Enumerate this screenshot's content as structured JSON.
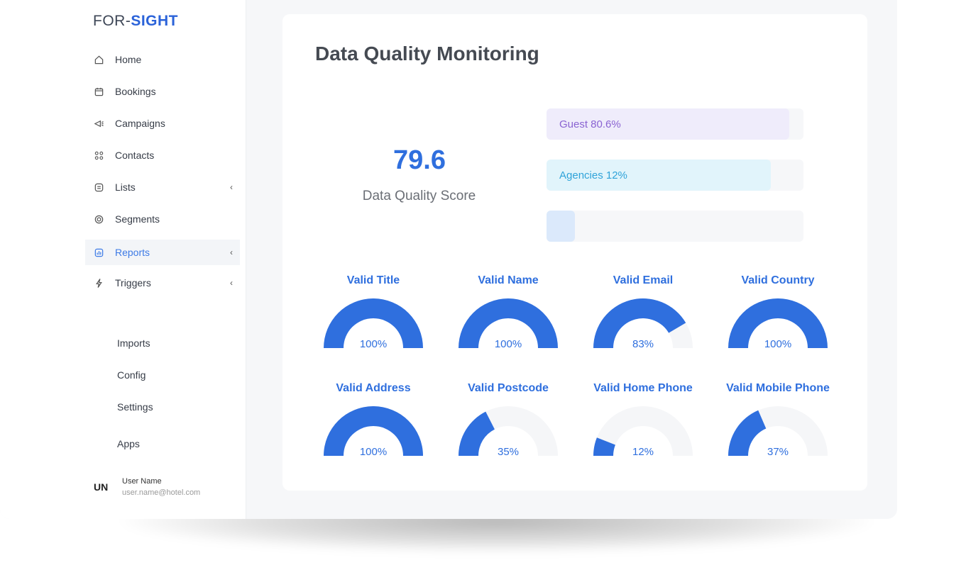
{
  "brand": {
    "part1": "FOR-",
    "part2": "SIGHT"
  },
  "nav": {
    "home": "Home",
    "bookings": "Bookings",
    "campaigns": "Campaigns",
    "contacts": "Contacts",
    "lists": "Lists",
    "segments": "Segments",
    "reports": "Reports",
    "triggers": "Triggers",
    "chevron": "‹"
  },
  "subnav": {
    "imports": "Imports",
    "config": "Config",
    "settings": "Settings",
    "apps": "Apps"
  },
  "user": {
    "initials": "UN",
    "name": "User Name",
    "email": "user.name@hotel.com"
  },
  "page": {
    "title": "Data Quality Monitoring"
  },
  "score": {
    "value": "79.6",
    "label": "Data Quality Score"
  },
  "bars": [
    {
      "label": "Guest 80.6%",
      "fraction": 0.946,
      "fill": "#efecfb",
      "text": "#8a63d2"
    },
    {
      "label": "Agencies 12%",
      "fraction": 0.873,
      "fill": "#e1f4fb",
      "text": "#2fa3d9"
    },
    {
      "label": "",
      "fraction": 0.11,
      "fill": "#dbe9fb",
      "text": "#2f6fde"
    }
  ],
  "gauges": [
    {
      "title": "Valid Title",
      "label": "100%",
      "value": 100
    },
    {
      "title": "Valid Name",
      "label": "100%",
      "value": 100
    },
    {
      "title": "Valid Email",
      "label": "83%",
      "value": 83
    },
    {
      "title": "Valid Country",
      "label": "100%",
      "value": 100
    },
    {
      "title": "Valid Address",
      "label": "100%",
      "value": 100
    },
    {
      "title": "Valid Postcode",
      "label": "35%",
      "value": 35
    },
    {
      "title": "Valid Home Phone",
      "label": "12%",
      "value": 12
    },
    {
      "title": "Valid Mobile Phone",
      "label": "37%",
      "value": 37
    }
  ],
  "colors": {
    "accent": "#2f6fde",
    "track": "#f5f6f8"
  }
}
